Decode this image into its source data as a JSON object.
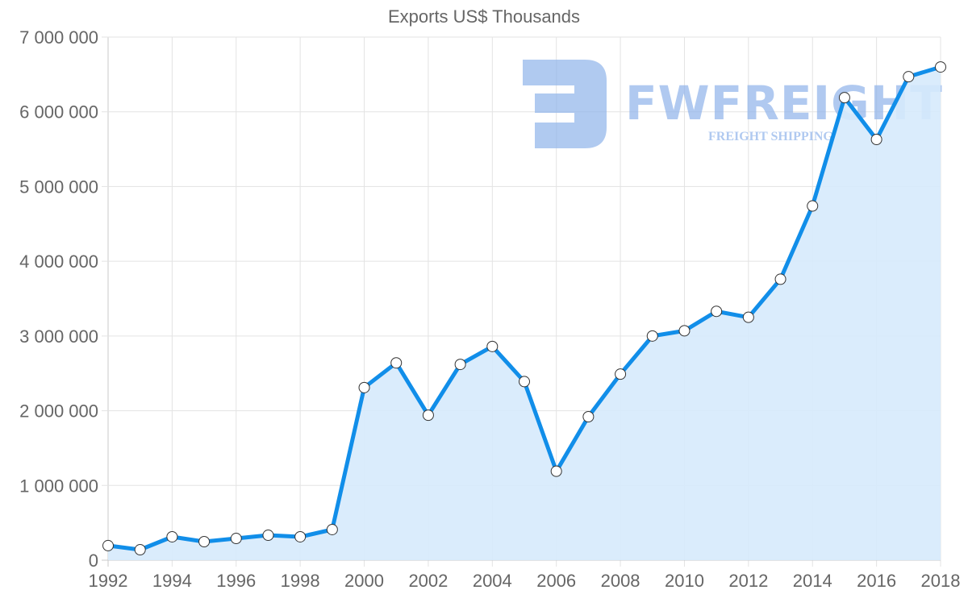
{
  "chart_data": {
    "type": "area",
    "title": "Exports US$ Thousands",
    "xlabel": "",
    "ylabel": "",
    "ylim": [
      0,
      7000000
    ],
    "grid": true,
    "legend": null,
    "yticks": [
      "0",
      "1 000 000",
      "2 000 000",
      "3 000 000",
      "4 000 000",
      "5 000 000",
      "6 000 000",
      "7 000 000"
    ],
    "ytick_values": [
      0,
      1000000,
      2000000,
      3000000,
      4000000,
      5000000,
      6000000,
      7000000
    ],
    "xticks": [
      "1992",
      "1994",
      "1996",
      "1998",
      "2000",
      "2002",
      "2004",
      "2006",
      "2008",
      "2010",
      "2012",
      "2014",
      "2016",
      "2018"
    ],
    "categories": [
      1992,
      1993,
      1994,
      1995,
      1996,
      1997,
      1998,
      1999,
      2000,
      2001,
      2002,
      2003,
      2004,
      2005,
      2006,
      2007,
      2008,
      2009,
      2010,
      2011,
      2012,
      2013,
      2014,
      2015,
      2016,
      2017,
      2018
    ],
    "series": [
      {
        "name": "Exports US$ Thousands",
        "values": [
          195000,
          140000,
          313000,
          248000,
          291000,
          334000,
          313000,
          410000,
          2310000,
          2640000,
          1940000,
          2620000,
          2860000,
          2390000,
          1190000,
          1920000,
          2490000,
          3000000,
          3070000,
          3330000,
          3250000,
          3760000,
          4740000,
          6190000,
          5630000,
          6470000,
          6600000
        ],
        "line_color": "#118ee9",
        "fill_color": "#d6eafc"
      }
    ]
  },
  "watermark": {
    "brand": "FWFREIGHT",
    "tagline": "FREIGHT SHIPPING",
    "color": "#8fb3ea"
  }
}
